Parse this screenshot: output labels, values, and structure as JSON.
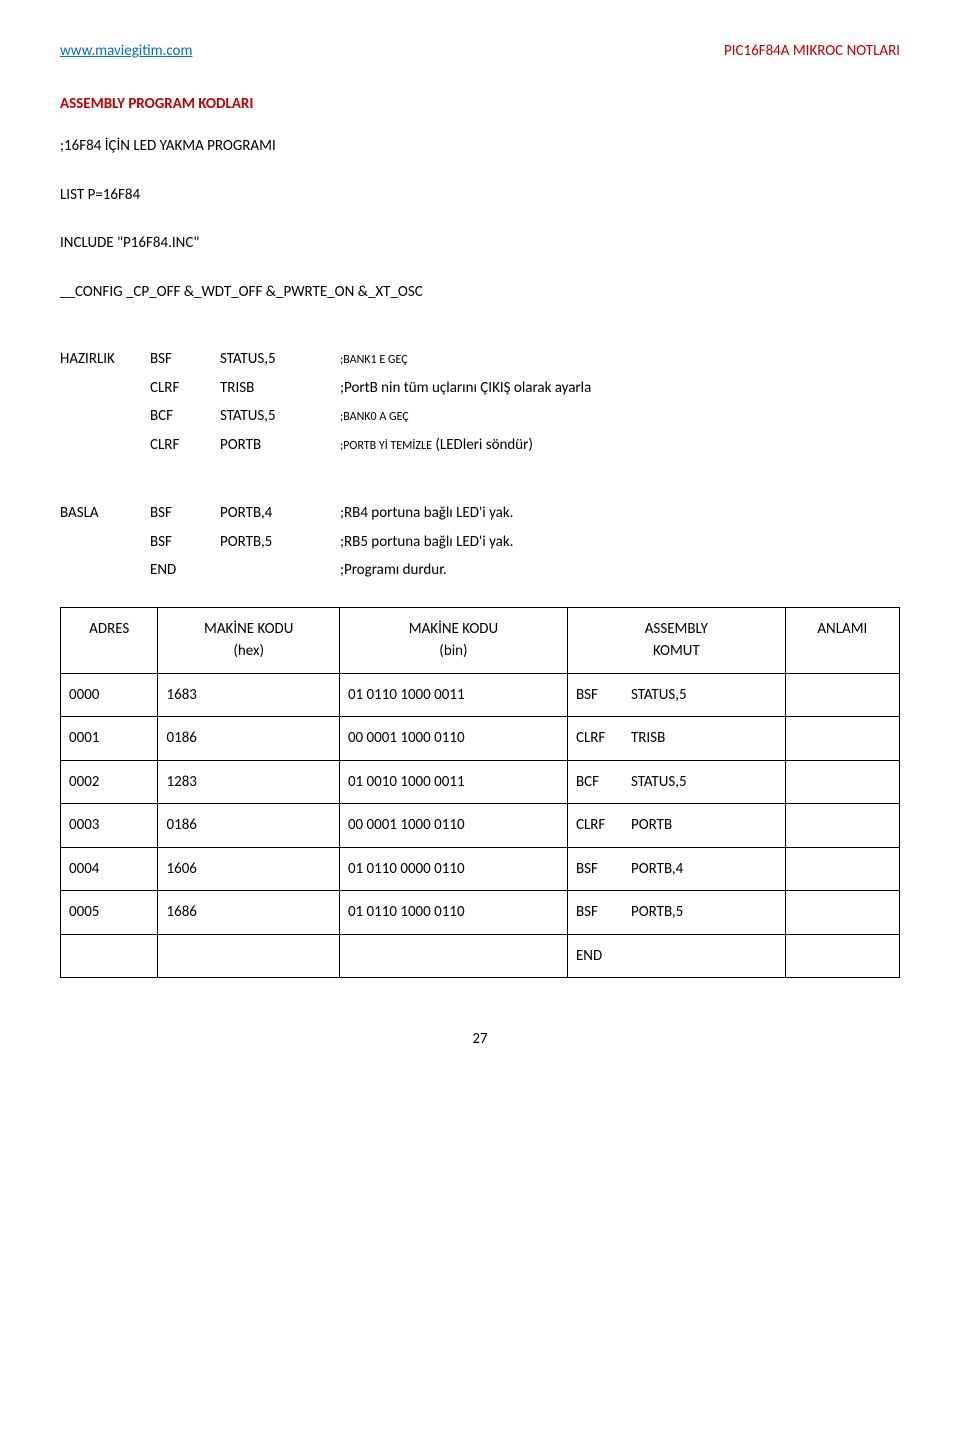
{
  "header": {
    "left": "www.maviegitim.com",
    "right": "PIC16F84A MIKROC NOTLARI"
  },
  "titles": {
    "section": "ASSEMBLY PROGRAM KODLARI"
  },
  "intro": {
    "line1": ";16F84 İÇİN LED YAKMA PROGRAMI",
    "line2": "LIST P=16F84",
    "line3": "INCLUDE \"P16F84.INC\"",
    "line4": "__CONFIG _CP_OFF &_WDT_OFF &_PWRTE_ON &_XT_OSC"
  },
  "asm_block1": [
    {
      "label": "HAZIRLIK",
      "op": "BSF",
      "arg": "STATUS,5",
      "comment_small": ";BANK1 E GEÇ",
      "comment": ""
    },
    {
      "label": "",
      "op": "CLRF",
      "arg": "TRISB",
      "comment_small": "",
      "comment": ";PortB nin tüm uçlarını ÇIKIŞ olarak ayarla"
    },
    {
      "label": "",
      "op": "BCF",
      "arg": "STATUS,5",
      "comment_small": ";BANK0 A GEÇ",
      "comment": ""
    },
    {
      "label": "",
      "op": "CLRF",
      "arg": "PORTB",
      "comment_small": ";PORTB Yİ TEMİZLE",
      "comment": " (LEDleri söndür)"
    }
  ],
  "asm_block2": [
    {
      "label": "BASLA",
      "op": "BSF",
      "arg": "PORTB,4",
      "comment": ";RB4 portuna bağlı LED'i yak."
    },
    {
      "label": "",
      "op": "BSF",
      "arg": "PORTB,5",
      "comment": ";RB5 portuna bağlı LED'i yak."
    },
    {
      "label": "",
      "op": "END",
      "arg": "",
      "comment": ";Programı durdur."
    }
  ],
  "table": {
    "headers": {
      "c1a": "ADRES",
      "c1b": "",
      "c2a": "MAKİNE KODU",
      "c2b": "(hex)",
      "c3a": "MAKİNE KODU",
      "c3b": "(bin)",
      "c4a": "ASSEMBLY",
      "c4b": "KOMUT",
      "c5a": "ANLAMI",
      "c5b": ""
    },
    "rows": [
      {
        "addr": "0000",
        "hex": "1683",
        "bin": "01 0110 1000 0011",
        "op": "BSF",
        "arg": "STATUS,5"
      },
      {
        "addr": "0001",
        "hex": "0186",
        "bin": "00 0001 1000 0110",
        "op": "CLRF",
        "arg": "TRISB"
      },
      {
        "addr": "0002",
        "hex": "1283",
        "bin": "01 0010 1000 0011",
        "op": "BCF",
        "arg": "STATUS,5"
      },
      {
        "addr": "0003",
        "hex": "0186",
        "bin": "00 0001 1000 0110",
        "op": "CLRF",
        "arg": "PORTB"
      },
      {
        "addr": "0004",
        "hex": "1606",
        "bin": "01 0110 0000 0110",
        "op": "BSF",
        "arg": "PORTB,4"
      },
      {
        "addr": "0005",
        "hex": "1686",
        "bin": "01 0110 1000 0110",
        "op": "BSF",
        "arg": "PORTB,5"
      },
      {
        "addr": "",
        "hex": "",
        "bin": "",
        "op": "END",
        "arg": ""
      }
    ]
  },
  "page": "27"
}
